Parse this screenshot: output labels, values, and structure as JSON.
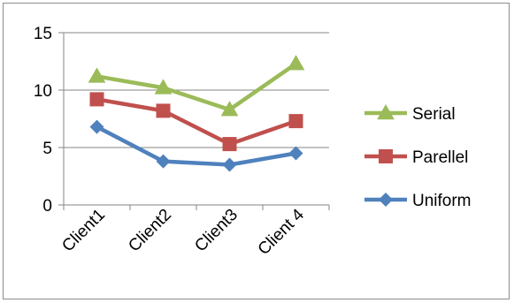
{
  "chart_data": {
    "type": "line",
    "categories": [
      "Client1",
      "Client2",
      "Client3",
      "Client 4"
    ],
    "series": [
      {
        "name": "Serial",
        "values": [
          11.2,
          10.2,
          8.3,
          12.3
        ],
        "color": "#9bbb59",
        "marker": "triangle"
      },
      {
        "name": "Parellel",
        "values": [
          9.2,
          8.2,
          5.3,
          7.3
        ],
        "color": "#c0504d",
        "marker": "square"
      },
      {
        "name": "Uniform",
        "values": [
          6.8,
          3.8,
          3.5,
          4.5
        ],
        "color": "#4f81bd",
        "marker": "diamond"
      }
    ],
    "title": "",
    "xlabel": "",
    "ylabel": "",
    "ylim": [
      0,
      15
    ],
    "yticks": [
      0,
      5,
      10,
      15
    ],
    "grid": true,
    "legend": "right"
  }
}
